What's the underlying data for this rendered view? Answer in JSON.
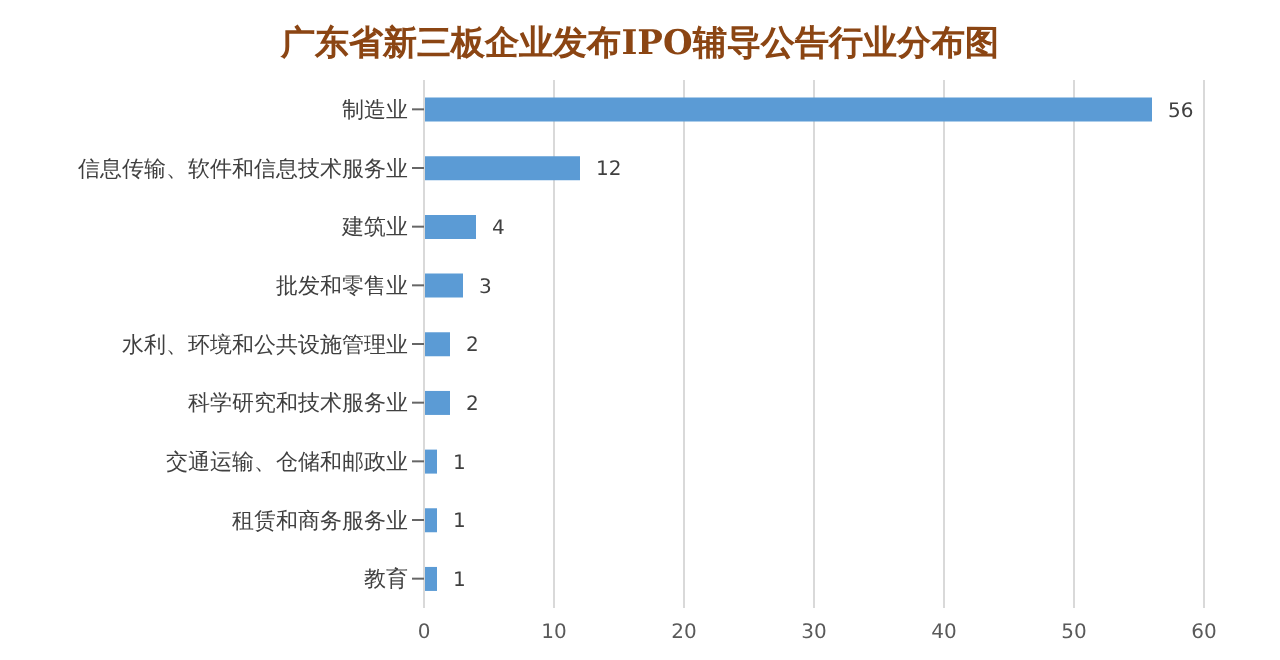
{
  "chart_data": {
    "type": "bar",
    "orientation": "horizontal",
    "title": "广东省新三板企业发布IPO辅导公告行业分布图",
    "categories": [
      "制造业",
      "信息传输、软件和信息技术服务业",
      "建筑业",
      "批发和零售业",
      "水利、环境和公共设施管理业",
      "科学研究和技术服务业",
      "交通运输、仓储和邮政业",
      "租赁和商务服务业",
      "教育"
    ],
    "values": [
      56,
      12,
      4,
      3,
      2,
      2,
      1,
      1,
      1
    ],
    "color": "#5b9bd5",
    "xlim": [
      0,
      60
    ],
    "xticks": [
      0,
      10,
      20,
      30,
      40,
      50,
      60
    ],
    "grid": "x",
    "data_labels": true
  }
}
